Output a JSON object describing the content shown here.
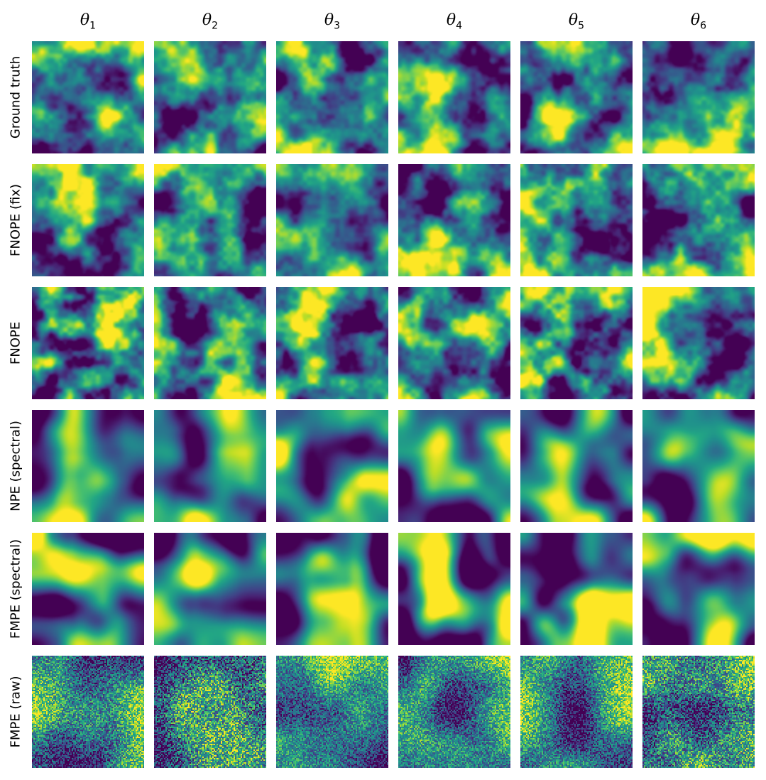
{
  "figure": {
    "columns": [
      {
        "symbol": "θ",
        "index": "1"
      },
      {
        "symbol": "θ",
        "index": "2"
      },
      {
        "symbol": "θ",
        "index": "3"
      },
      {
        "symbol": "θ",
        "index": "4"
      },
      {
        "symbol": "θ",
        "index": "5"
      },
      {
        "symbol": "θ",
        "index": "6"
      }
    ],
    "rows": [
      {
        "label": "Ground truth",
        "smoothness": "fine",
        "noise": "none",
        "contrast": 1.0
      },
      {
        "label": "FNOPE (fix)",
        "smoothness": "fine",
        "noise": "none",
        "contrast": 1.0
      },
      {
        "label": "FNOPE",
        "smoothness": "fine",
        "noise": "none",
        "contrast": 1.05
      },
      {
        "label": "NPE (spectral)",
        "smoothness": "smooth",
        "noise": "none",
        "contrast": 0.9
      },
      {
        "label": "FMPE (spectral)",
        "smoothness": "smooth",
        "noise": "none",
        "contrast": 1.15
      },
      {
        "label": "FMPE (raw)",
        "smoothness": "coarse",
        "noise": "pixel",
        "contrast": 0.9
      }
    ],
    "colormap": "viridis",
    "colors": {
      "low": "#440154",
      "mid": "#21918c",
      "high": "#fde725"
    }
  }
}
